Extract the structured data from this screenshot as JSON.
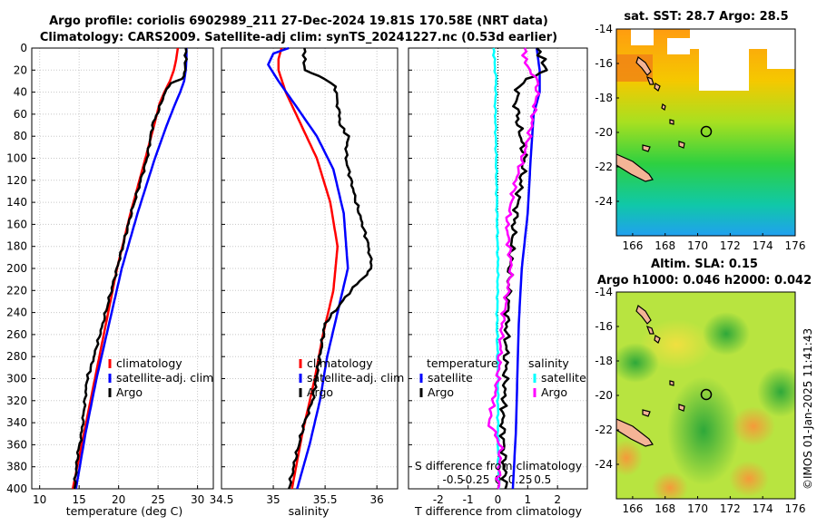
{
  "header": {
    "title_line1": "Argo profile: coriolis 6902989_211 27-Dec-2024 19.81S 170.58E (NRT data)",
    "title_line2": "Climatology: CARS2009. Satellite-adj clim: synTS_20241227.nc (0.53d earlier)"
  },
  "watermark": "©IMOS 01-Jan-2025 11:41:43",
  "colors": {
    "climatology": "#ff0000",
    "satellite": "#0000ff",
    "argo": "#000000",
    "satellite_s": "#00ffff",
    "argo_s": "#ff00ff"
  },
  "chart_data": [
    {
      "type": "line",
      "panel": "temperature",
      "xlabel": "temperature (deg C)",
      "ylabel": "",
      "xlim": [
        9,
        32
      ],
      "ylim": [
        400,
        0
      ],
      "xticks": [
        10,
        15,
        20,
        25,
        30
      ],
      "yticks": [
        0,
        20,
        40,
        60,
        80,
        100,
        120,
        140,
        160,
        180,
        200,
        220,
        240,
        260,
        280,
        300,
        320,
        340,
        360,
        380,
        400
      ],
      "legend": [
        "climatology",
        "satellite-adj. clim",
        "Argo"
      ],
      "series": [
        {
          "name": "climatology",
          "depth": [
            0,
            10,
            20,
            30,
            40,
            50,
            70,
            100,
            150,
            200,
            250,
            300,
            350,
            400
          ],
          "values": [
            27.5,
            27.3,
            27.0,
            26.5,
            25.8,
            25.2,
            24.5,
            23.4,
            21.5,
            19.8,
            18.4,
            17.0,
            15.6,
            14.2
          ]
        },
        {
          "name": "satellite-adj. clim",
          "depth": [
            0,
            10,
            20,
            30,
            40,
            50,
            70,
            100,
            150,
            200,
            250,
            300,
            350,
            400
          ],
          "values": [
            28.6,
            28.6,
            28.5,
            28.3,
            27.8,
            27.2,
            26.1,
            24.6,
            22.4,
            20.4,
            18.8,
            17.2,
            15.8,
            14.6
          ]
        },
        {
          "name": "Argo",
          "depth": [
            0,
            10,
            20,
            28,
            32,
            40,
            50,
            70,
            100,
            150,
            200,
            250,
            290,
            300,
            330,
            350,
            370,
            400
          ],
          "values": [
            28.5,
            28.5,
            28.4,
            28.1,
            26.5,
            25.9,
            25.4,
            24.3,
            23.6,
            21.6,
            19.8,
            18.0,
            16.5,
            16.0,
            15.6,
            15.3,
            14.8,
            14.4
          ]
        }
      ]
    },
    {
      "type": "line",
      "panel": "salinity",
      "xlabel": "salinity",
      "ylabel": "",
      "xlim": [
        34.5,
        36.2
      ],
      "xticks": [
        34.5,
        35,
        35.5,
        36
      ],
      "ylim": [
        400,
        0
      ],
      "legend": [
        "climatology",
        "satellite-adj. clim",
        "Argo"
      ],
      "series": [
        {
          "name": "climatology",
          "depth": [
            0,
            10,
            20,
            40,
            60,
            80,
            100,
            140,
            180,
            220,
            260,
            300,
            350,
            400
          ],
          "values": [
            35.08,
            35.05,
            35.05,
            35.12,
            35.22,
            35.32,
            35.42,
            35.55,
            35.62,
            35.58,
            35.48,
            35.4,
            35.28,
            35.18
          ]
        },
        {
          "name": "satellite-adj. clim",
          "depth": [
            0,
            5,
            15,
            30,
            50,
            80,
            110,
            150,
            200,
            240,
            280,
            320,
            360,
            400
          ],
          "values": [
            35.15,
            35.0,
            34.95,
            35.05,
            35.2,
            35.42,
            35.58,
            35.68,
            35.72,
            35.62,
            35.52,
            35.45,
            35.35,
            35.23
          ]
        },
        {
          "name": "Argo",
          "depth": [
            0,
            10,
            20,
            28,
            35,
            50,
            70,
            80,
            100,
            140,
            180,
            200,
            220,
            250,
            280,
            320,
            340,
            370,
            400
          ],
          "values": [
            35.3,
            35.3,
            35.3,
            35.5,
            35.6,
            35.62,
            35.65,
            35.72,
            35.7,
            35.8,
            35.92,
            35.95,
            35.75,
            35.5,
            35.45,
            35.38,
            35.3,
            35.22,
            35.15
          ]
        }
      ]
    },
    {
      "type": "line",
      "panel": "difference",
      "xlabel": "T difference from climatology",
      "xlabel_top": "S difference from climatology",
      "xlim": [
        -3,
        3
      ],
      "xticks": [
        -2,
        -1,
        0,
        1,
        2
      ],
      "xticks_s": [
        "-0.5",
        "-0.25",
        "0",
        "0.25",
        "0.5"
      ],
      "ylim": [
        400,
        0
      ],
      "legend_t": [
        "temperature",
        "satellite",
        "Argo"
      ],
      "legend_s": [
        "salinity",
        "satellite",
        "Argo"
      ],
      "series": [
        {
          "name": "T satellite",
          "depth": [
            0,
            20,
            40,
            60,
            100,
            150,
            200,
            250,
            300,
            350,
            400
          ],
          "values": [
            1.3,
            1.4,
            1.4,
            1.2,
            1.1,
            1.0,
            0.8,
            0.7,
            0.65,
            0.6,
            0.5
          ]
        },
        {
          "name": "T Argo",
          "depth": [
            0,
            10,
            20,
            28,
            35,
            50,
            70,
            100,
            150,
            170,
            200,
            250,
            300,
            340,
            370,
            400
          ],
          "values": [
            1.3,
            1.5,
            1.6,
            1.0,
            0.7,
            0.6,
            0.7,
            0.9,
            0.6,
            0.5,
            0.4,
            0.3,
            0.25,
            0.15,
            0.2,
            0.25
          ]
        },
        {
          "name": "S satellite",
          "depth": [
            0,
            10,
            30,
            50,
            100,
            150,
            200,
            250,
            300,
            350,
            400
          ],
          "values": [
            -0.05,
            -0.04,
            -0.02,
            -0.03,
            -0.02,
            -0.01,
            0.0,
            -0.01,
            0.0,
            0.0,
            0.01
          ]
        },
        {
          "name": "S Argo",
          "depth": [
            0,
            10,
            20,
            30,
            50,
            80,
            120,
            160,
            200,
            250,
            300,
            340,
            360,
            400
          ],
          "values": [
            0.3,
            0.3,
            0.35,
            0.45,
            0.42,
            0.35,
            0.2,
            0.1,
            0.15,
            0.05,
            0.0,
            -0.1,
            0.03,
            0.0
          ]
        }
      ]
    },
    {
      "type": "heatmap",
      "panel": "sst_map",
      "title": "sat. SST: 28.7 Argo: 28.5",
      "xlim": [
        165,
        176
      ],
      "ylim": [
        -26,
        -14
      ],
      "xticks": [
        166,
        168,
        170,
        172,
        174,
        176
      ],
      "yticks": [
        -14,
        -16,
        -18,
        -20,
        -22,
        -24
      ],
      "marker": {
        "lon": 170.58,
        "lat": -19.81
      }
    },
    {
      "type": "heatmap",
      "panel": "sla_map",
      "title_line1": "Altim. SLA: 0.15",
      "title_line2": "Argo h1000: 0.046 h2000: 0.042",
      "xlim": [
        165,
        176
      ],
      "ylim": [
        -26,
        -14
      ],
      "xticks": [
        166,
        168,
        170,
        172,
        174,
        176
      ],
      "yticks": [
        -14,
        -16,
        -18,
        -20,
        -22,
        -24
      ],
      "marker": {
        "lon": 170.58,
        "lat": -19.81
      }
    }
  ]
}
